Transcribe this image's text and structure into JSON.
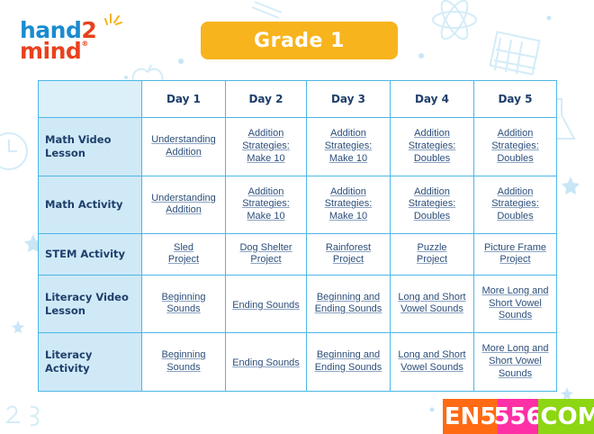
{
  "logo": {
    "part1": "hand",
    "two": "2",
    "part2": "mind",
    "reg": "®"
  },
  "title": "Grade 1",
  "table": {
    "days": [
      "Day 1",
      "Day 2",
      "Day 3",
      "Day 4",
      "Day 5"
    ],
    "rows": [
      {
        "label": "Math Video\nLesson",
        "cells": [
          "Understanding\nAddition",
          "Addition\nStrategies:\nMake 10",
          "Addition\nStrategies:\nMake 10",
          "Addition\nStrategies:\nDoubles",
          "Addition\nStrategies:\nDoubles"
        ]
      },
      {
        "label": "Math Activity",
        "cells": [
          "Understanding\nAddition",
          "Addition\nStrategies:\nMake 10",
          "Addition\nStrategies:\nMake 10",
          "Addition\nStrategies:\nDoubles",
          "Addition\nStrategies:\nDoubles"
        ]
      },
      {
        "label": "STEM Activity",
        "cells": [
          "Sled\nProject",
          "Dog Shelter\nProject",
          "Rainforest\nProject",
          "Puzzle\nProject",
          "Picture Frame\nProject"
        ]
      },
      {
        "label": "Literacy Video\nLesson",
        "cells": [
          "Beginning\nSounds",
          "Ending Sounds",
          "Beginning and\nEnding Sounds",
          "Long and Short\nVowel Sounds",
          "More Long and\nShort Vowel\nSounds"
        ]
      },
      {
        "label": "Literacy Activity",
        "cells": [
          "Beginning\nSounds",
          "Ending Sounds",
          "Beginning and\nEnding Sounds",
          "Long and Short\nVowel Sounds",
          "More Long and\nShort Vowel\nSounds"
        ]
      }
    ]
  },
  "watermark": {
    "a": "EN5",
    "b": "556",
    "c": ".COM"
  }
}
